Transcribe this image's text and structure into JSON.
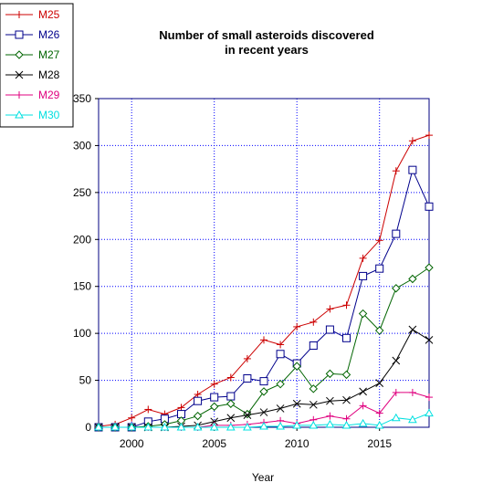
{
  "chart_data": {
    "type": "line",
    "title_lines": [
      "Number of small asteroids discovered",
      "in recent years"
    ],
    "xlabel": "Year",
    "ylabel": "",
    "xlim": [
      1998,
      2018
    ],
    "ylim": [
      0,
      350
    ],
    "x_ticks": [
      2000,
      2005,
      2010,
      2015
    ],
    "y_ticks": [
      0,
      50,
      100,
      150,
      200,
      250,
      300,
      350
    ],
    "grid": true,
    "legend_position": "top-left",
    "colors": {
      "frame": "#000080",
      "grid": "#0000ff"
    },
    "x": [
      1998,
      1999,
      2000,
      2001,
      2002,
      2003,
      2004,
      2005,
      2006,
      2007,
      2008,
      2009,
      2010,
      2011,
      2012,
      2013,
      2014,
      2015,
      2016,
      2017,
      2018
    ],
    "series": [
      {
        "name": "M25",
        "color": "#cc0000",
        "marker": "plus",
        "values": [
          1,
          3,
          10,
          19,
          14,
          21,
          35,
          46,
          53,
          73,
          93,
          88,
          107,
          112,
          126,
          130,
          180,
          199,
          273,
          305,
          311
        ]
      },
      {
        "name": "M26",
        "color": "#00008b",
        "marker": "square",
        "values": [
          0,
          0,
          0,
          6,
          9,
          14,
          28,
          32,
          33,
          52,
          49,
          78,
          68,
          87,
          104,
          95,
          161,
          169,
          206,
          274,
          235
        ]
      },
      {
        "name": "M27",
        "color": "#006400",
        "marker": "diamond",
        "values": [
          0,
          0,
          0,
          1,
          3,
          7,
          12,
          22,
          25,
          14,
          38,
          46,
          65,
          41,
          57,
          56,
          121,
          103,
          148,
          158,
          170
        ]
      },
      {
        "name": "M28",
        "color": "#000000",
        "marker": "x",
        "values": [
          0,
          0,
          0,
          0,
          0,
          1,
          2,
          6,
          10,
          13,
          16,
          20,
          25,
          24,
          28,
          29,
          38,
          47,
          71,
          104,
          93
        ]
      },
      {
        "name": "M29",
        "color": "#e0007f",
        "marker": "plus",
        "values": [
          0,
          0,
          0,
          0,
          0,
          0,
          0,
          2,
          2,
          3,
          5,
          7,
          4,
          8,
          12,
          9,
          23,
          15,
          37,
          37,
          32
        ]
      },
      {
        "name": "M30",
        "color": "#00e0e0",
        "marker": "triangle",
        "values": [
          0,
          0,
          0,
          0,
          0,
          0,
          0,
          0,
          0,
          0,
          1,
          1,
          2,
          2,
          3,
          2,
          4,
          2,
          10,
          8,
          15
        ]
      }
    ]
  }
}
